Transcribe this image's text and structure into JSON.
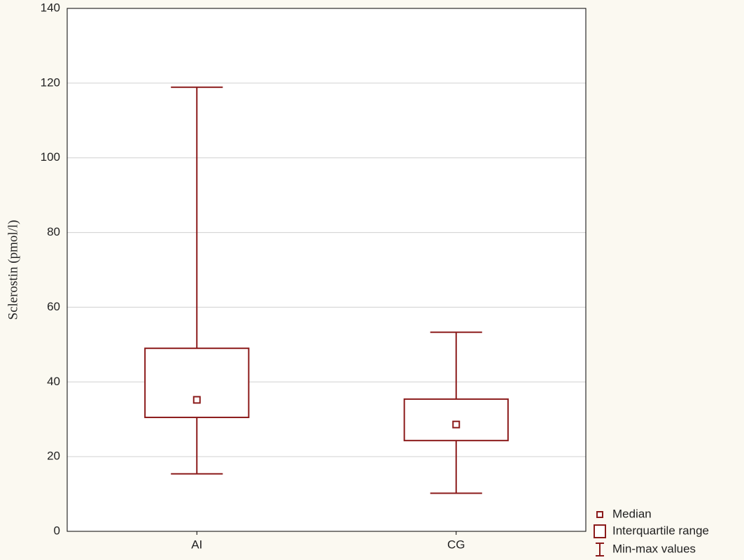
{
  "chart_data": {
    "type": "box",
    "y_label": "Sclerostin (pmol/l)",
    "categories": [
      "AI",
      "CG"
    ],
    "boxes": [
      {
        "min": 15.4,
        "q1": 30.5,
        "median": 35.2,
        "q3": 49.0,
        "max": 118.9
      },
      {
        "min": 10.2,
        "q1": 24.3,
        "median": 28.6,
        "q3": 35.4,
        "max": 53.3
      }
    ],
    "color": "#8b1a1a",
    "ylim": [
      0,
      140
    ],
    "yticks": [
      0,
      20,
      40,
      60,
      80,
      100,
      120,
      140
    ],
    "grid": true,
    "legend": [
      "Median",
      "Interquartile range",
      "Min-max values"
    ],
    "legend_position": "bottom-right"
  }
}
